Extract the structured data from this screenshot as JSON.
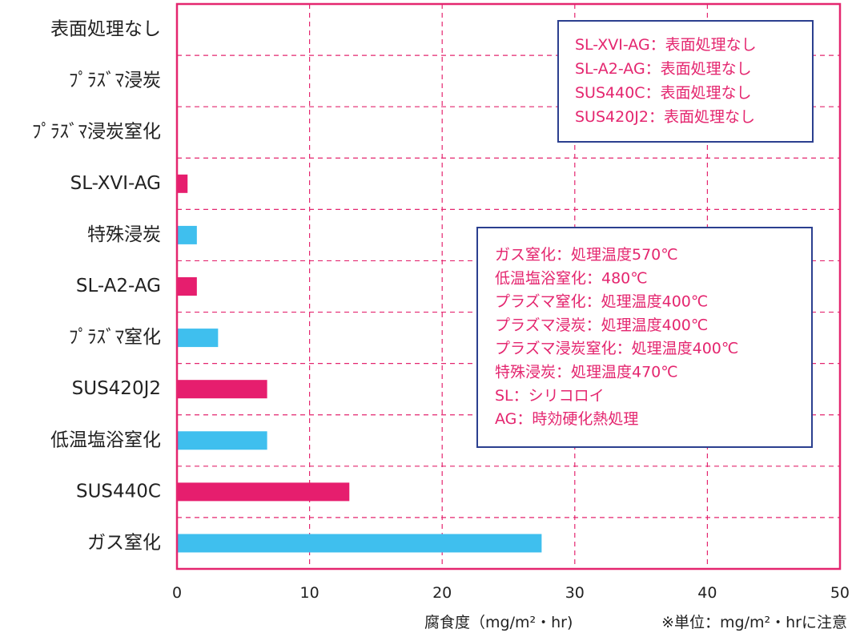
{
  "chart_data": {
    "type": "bar",
    "orientation": "horizontal",
    "categories": [
      "表面処理なし",
      "ﾌﾟﾗｽﾞﾏ浸炭",
      "ﾌﾟﾗｽﾞﾏ浸炭窒化",
      "SL-XVI-AG",
      "特殊浸炭",
      "SL-A2-AG",
      "ﾌﾟﾗｽﾞﾏ窒化",
      "SUS420J2",
      "低温塩浴窒化",
      "SUS440C",
      "ガス窒化"
    ],
    "values": [
      0,
      0,
      0,
      0.8,
      1.5,
      1.5,
      3.1,
      6.8,
      6.8,
      13.0,
      27.5
    ],
    "bar_colors": [
      "#3fbfee",
      "#3fbfee",
      "#3fbfee",
      "#e61e6e",
      "#3fbfee",
      "#e61e6e",
      "#3fbfee",
      "#e61e6e",
      "#3fbfee",
      "#e61e6e",
      "#3fbfee"
    ],
    "xlim": [
      0,
      50
    ],
    "xticks": [
      0,
      10,
      20,
      30,
      40,
      50
    ],
    "xlabel": "腐食度（mg/m²・hr)",
    "unit_note": "※単位：mg/m²・hrに注意",
    "grid": true,
    "colors": {
      "frame": "#e4266f",
      "grid": "#e4266f",
      "legend_border": "#2b3f8f",
      "legend_text": "#e4266f",
      "stainless": "#e61e6e",
      "treatment": "#3fbfee"
    },
    "legend_notes": [
      [
        "SL-XVI-AG：表面処理なし",
        "SL-A2-AG：表面処理なし",
        "SUS440C：表面処理なし",
        "SUS420J2：表面処理なし"
      ],
      [
        "ガス窒化：処理温度570℃",
        "低温塩浴窒化：480℃",
        "プラズマ窒化：処理温度400℃",
        "プラズマ浸炭：処理温度400℃",
        "プラズマ浸炭窒化：処理温度400℃",
        "特殊浸炭：処理温度470℃",
        "SL：シリコロイ",
        "AG：時効硬化熱処理"
      ]
    ]
  }
}
